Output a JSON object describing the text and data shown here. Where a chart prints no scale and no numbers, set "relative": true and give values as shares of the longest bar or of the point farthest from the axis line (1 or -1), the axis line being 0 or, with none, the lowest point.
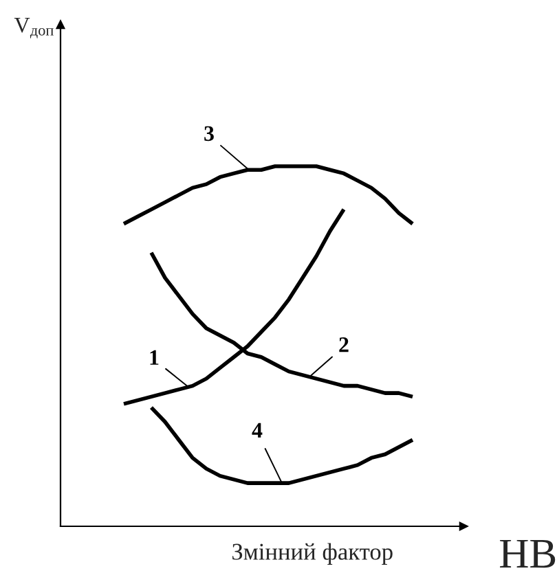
{
  "chart_data": {
    "type": "line",
    "relative": true,
    "xlabel": "Змінний фактор",
    "annotations": [
      "V$_{доп}$",
      "HB"
    ],
    "categories": [
      null,
      null,
      null,
      null,
      null,
      null,
      null,
      null,
      null,
      null,
      null,
      null,
      null,
      null,
      null,
      null,
      null,
      null,
      null,
      null,
      null,
      null
    ],
    "series": [
      {
        "name": "1",
        "color": "#000000",
        "values": [
          0.34,
          0.35,
          0.36,
          0.37,
          0.38,
          0.39,
          0.41,
          0.44,
          0.47,
          0.5,
          0.54,
          0.58,
          0.63,
          0.69,
          0.75,
          0.82,
          0.88,
          null,
          null,
          null,
          null,
          null
        ]
      },
      {
        "name": "2",
        "color": "#000000",
        "values": [
          null,
          null,
          0.76,
          0.69,
          0.64,
          0.59,
          0.55,
          0.53,
          0.51,
          0.48,
          0.47,
          0.45,
          0.43,
          0.42,
          0.41,
          0.4,
          0.39,
          0.39,
          0.38,
          0.37,
          0.37,
          0.36
        ]
      },
      {
        "name": "3",
        "color": "#000000",
        "values": [
          0.84,
          0.86,
          0.88,
          0.9,
          0.92,
          0.94,
          0.95,
          0.97,
          0.98,
          0.99,
          0.99,
          1,
          1,
          1,
          1,
          0.99,
          0.98,
          0.96,
          0.94,
          0.91,
          0.87,
          0.84
        ]
      },
      {
        "name": "4",
        "color": "#000000",
        "values": [
          null,
          null,
          0.33,
          0.29,
          0.24,
          0.19,
          0.16,
          0.14,
          0.13,
          0.12,
          0.12,
          0.12,
          0.12,
          0.13,
          0.14,
          0.15,
          0.16,
          0.17,
          0.19,
          0.2,
          0.22,
          0.24
        ]
      }
    ],
    "legend": false,
    "line_style": "solid",
    "marker": "none"
  }
}
